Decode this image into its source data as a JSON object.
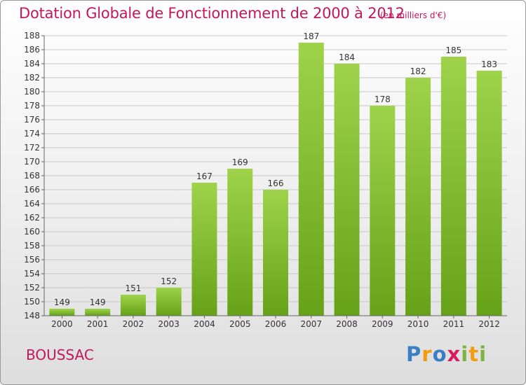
{
  "chart_data": {
    "type": "bar",
    "title": "Dotation Globale de Fonctionnement de 2000 à 2012",
    "subtitle": "(en milliers d'€)",
    "categories": [
      "2000",
      "2001",
      "2002",
      "2003",
      "2004",
      "2005",
      "2006",
      "2007",
      "2008",
      "2009",
      "2010",
      "2011",
      "2012"
    ],
    "values": [
      149,
      149,
      151,
      152,
      167,
      169,
      166,
      187,
      184,
      178,
      182,
      185,
      183
    ],
    "xlabel": "",
    "ylabel": "",
    "ylim": [
      148,
      188
    ],
    "ytick_step": 2,
    "grid": true,
    "bar_color": "#7cbf2a"
  },
  "footer": {
    "city": "BOUSSAC",
    "logo": {
      "letters": [
        "P",
        "r",
        "o",
        "x",
        "i",
        "t",
        "i"
      ],
      "colors": [
        "#3a7fc4",
        "#f39c12",
        "#3a7fc4",
        "#d81b60",
        "#7cb342",
        "#f39c12",
        "#7cb342"
      ]
    }
  }
}
